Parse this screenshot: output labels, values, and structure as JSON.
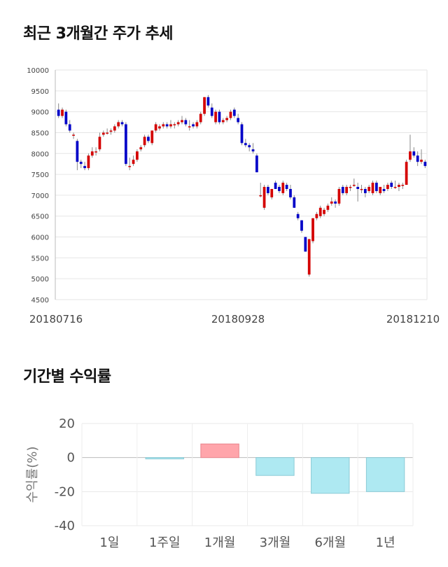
{
  "section1": {
    "title": "최근 3개월간 주가 추세"
  },
  "section2": {
    "title": "기간별 수익률"
  },
  "chart_data": [
    {
      "type": "candlestick",
      "title": "최근 3개월간 주가 추세",
      "ylim": [
        4500,
        10000
      ],
      "y_ticks": [
        4500,
        5000,
        5500,
        6000,
        6500,
        7000,
        7500,
        8000,
        8500,
        9000,
        9500,
        10000
      ],
      "x_labels": [
        "20180716",
        "20180928",
        "20181210"
      ],
      "grid": true,
      "up_color": "#d40000",
      "down_color": "#0000c8",
      "candles": [
        [
          9050,
          9200,
          8850,
          8900
        ],
        [
          8900,
          9100,
          8850,
          9050
        ],
        [
          9000,
          9050,
          8650,
          8700
        ],
        [
          8700,
          8800,
          8500,
          8550
        ],
        [
          8450,
          8500,
          8350,
          8450
        ],
        [
          8300,
          8350,
          7600,
          7800
        ],
        [
          7800,
          7850,
          7650,
          7750
        ],
        [
          7700,
          7800,
          7600,
          7650
        ],
        [
          7650,
          8000,
          7600,
          7950
        ],
        [
          7950,
          8150,
          7900,
          8050
        ],
        [
          8050,
          8150,
          7950,
          8050
        ],
        [
          8100,
          8500,
          8050,
          8400
        ],
        [
          8450,
          8550,
          8400,
          8500
        ],
        [
          8500,
          8600,
          8450,
          8500
        ],
        [
          8520,
          8600,
          8450,
          8550
        ],
        [
          8550,
          8700,
          8500,
          8650
        ],
        [
          8650,
          8800,
          8600,
          8750
        ],
        [
          8750,
          8800,
          8650,
          8700
        ],
        [
          8700,
          8750,
          7700,
          7750
        ],
        [
          7700,
          7900,
          7600,
          7700
        ],
        [
          7750,
          7950,
          7700,
          7850
        ],
        [
          7850,
          8100,
          7800,
          8050
        ],
        [
          8100,
          8200,
          8050,
          8150
        ],
        [
          8200,
          8450,
          8150,
          8400
        ],
        [
          8400,
          8450,
          8250,
          8300
        ],
        [
          8250,
          8550,
          8200,
          8550
        ],
        [
          8550,
          8750,
          8500,
          8700
        ],
        [
          8600,
          8700,
          8550,
          8650
        ],
        [
          8650,
          8750,
          8600,
          8700
        ],
        [
          8700,
          8750,
          8600,
          8650
        ],
        [
          8650,
          8800,
          8600,
          8700
        ],
        [
          8700,
          8750,
          8600,
          8700
        ],
        [
          8700,
          8800,
          8650,
          8750
        ],
        [
          8750,
          8900,
          8700,
          8800
        ],
        [
          8800,
          8850,
          8650,
          8700
        ],
        [
          8650,
          8800,
          8550,
          8650
        ],
        [
          8700,
          8750,
          8600,
          8650
        ],
        [
          8650,
          8800,
          8600,
          8750
        ],
        [
          8750,
          9000,
          8700,
          8950
        ],
        [
          8950,
          9350,
          8900,
          9350
        ],
        [
          9350,
          9400,
          9100,
          9150
        ],
        [
          9100,
          9200,
          8850,
          8900
        ],
        [
          8750,
          9050,
          8700,
          9000
        ],
        [
          9000,
          9050,
          8700,
          8750
        ],
        [
          8750,
          8850,
          8700,
          8800
        ],
        [
          8800,
          8900,
          8750,
          8850
        ],
        [
          8850,
          9050,
          8800,
          9000
        ],
        [
          9050,
          9100,
          8850,
          8900
        ],
        [
          8850,
          8950,
          8700,
          8750
        ],
        [
          8700,
          8750,
          8200,
          8250
        ],
        [
          8250,
          8350,
          8150,
          8200
        ],
        [
          8200,
          8250,
          8050,
          8150
        ],
        [
          8100,
          8250,
          8000,
          8050
        ],
        [
          7950,
          8000,
          7550,
          7550
        ],
        [
          7000,
          7300,
          6950,
          7000
        ],
        [
          6700,
          7250,
          6650,
          7200
        ],
        [
          7200,
          7250,
          7000,
          7050
        ],
        [
          6950,
          7150,
          6900,
          7150
        ],
        [
          7300,
          7350,
          7150,
          7150
        ],
        [
          7200,
          7250,
          7050,
          7100
        ],
        [
          7050,
          7350,
          7000,
          7300
        ],
        [
          7250,
          7300,
          7100,
          7150
        ],
        [
          7150,
          7250,
          6900,
          6950
        ],
        [
          6950,
          7000,
          6700,
          6700
        ],
        [
          6550,
          6600,
          6400,
          6450
        ],
        [
          6400,
          6400,
          6100,
          6150
        ],
        [
          6000,
          6000,
          5650,
          5650
        ],
        [
          5100,
          5950,
          5050,
          5950
        ],
        [
          5900,
          6450,
          5850,
          6450
        ],
        [
          6450,
          6600,
          6400,
          6550
        ],
        [
          6500,
          6750,
          6450,
          6700
        ],
        [
          6550,
          6700,
          6500,
          6650
        ],
        [
          6650,
          6800,
          6600,
          6750
        ],
        [
          6800,
          6950,
          6750,
          6850
        ],
        [
          6850,
          6900,
          6700,
          6800
        ],
        [
          6800,
          7200,
          6750,
          7150
        ],
        [
          7200,
          7250,
          7000,
          7050
        ],
        [
          7050,
          7250,
          7000,
          7200
        ],
        [
          7200,
          7250,
          7100,
          7200
        ],
        [
          7250,
          7400,
          7200,
          7250
        ],
        [
          7200,
          7300,
          6850,
          7150
        ],
        [
          7150,
          7250,
          7050,
          7150
        ],
        [
          7150,
          7200,
          6950,
          7050
        ],
        [
          7100,
          7250,
          7050,
          7200
        ],
        [
          7050,
          7350,
          7000,
          7300
        ],
        [
          7300,
          7350,
          7050,
          7100
        ],
        [
          7050,
          7200,
          7000,
          7200
        ],
        [
          7150,
          7250,
          7050,
          7100
        ],
        [
          7150,
          7300,
          7100,
          7250
        ],
        [
          7300,
          7350,
          7150,
          7200
        ],
        [
          7200,
          7350,
          7150,
          7200
        ],
        [
          7200,
          7300,
          7100,
          7250
        ],
        [
          7250,
          7300,
          7150,
          7250
        ],
        [
          7250,
          7850,
          7250,
          7800
        ],
        [
          7850,
          8450,
          7800,
          8050
        ],
        [
          8050,
          8150,
          7900,
          7950
        ],
        [
          7950,
          8050,
          7700,
          7800
        ],
        [
          7800,
          8100,
          7750,
          7850
        ],
        [
          7800,
          7850,
          7650,
          7700
        ]
      ]
    },
    {
      "type": "bar",
      "title": "기간별 수익률",
      "ylabel": "수익률(%)",
      "ylim": [
        -40,
        20
      ],
      "y_ticks": [
        -40,
        -20,
        0,
        20
      ],
      "categories": [
        "1일",
        "1주일",
        "1개월",
        "3개월",
        "6개월",
        "1년"
      ],
      "values": [
        0,
        -0.8,
        8,
        -10.5,
        -21,
        -20
      ],
      "positive_color": "#ffa5ab",
      "negative_color": "#aee9f2"
    }
  ]
}
